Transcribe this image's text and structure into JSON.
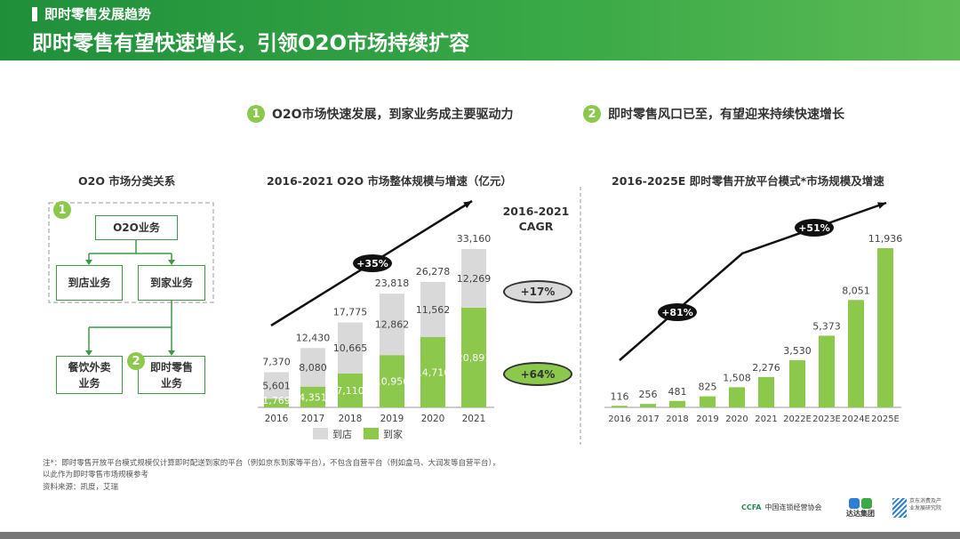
{
  "header": {
    "section": "即时零售发展趋势",
    "title": "即时零售有望快速增长，引领O2O市场持续扩容"
  },
  "points": [
    {
      "num": "1",
      "text": "O2O市场快速发展，到家业务成主要驱动力"
    },
    {
      "num": "2",
      "text": "即时零售风口已至，有望迎来持续快速增长"
    }
  ],
  "diagram": {
    "title": "O2O 市场分类关系",
    "root": "O2O业务",
    "store": "到店业务",
    "home": "到家业务",
    "food": "餐饮外卖\n业务",
    "retail": "即时零售\n业务",
    "badge1": "1",
    "badge2": "2"
  },
  "chart_data": [
    {
      "type": "bar",
      "stacked": true,
      "title": "2016-2021 O2O 市场整体规模与增速（亿元）",
      "categories": [
        "2016",
        "2017",
        "2018",
        "2019",
        "2020",
        "2021"
      ],
      "series": [
        {
          "name": "到家",
          "values": [
            1769,
            4351,
            7110,
            10956,
            14716,
            20891
          ],
          "color": "#8cc84b"
        },
        {
          "name": "到店",
          "values": [
            5601,
            8080,
            10665,
            12862,
            11562,
            12269
          ],
          "color": "#d9d9d9"
        }
      ],
      "totals": [
        7370,
        12430,
        17775,
        23818,
        26278,
        33160
      ],
      "totals_labels": [
        "7,370",
        "12,430",
        "17,775",
        "23,818",
        "26,278",
        "33,160"
      ],
      "home_labels": [
        "1,769",
        "4,351",
        "7,110",
        "10,956",
        "14,716",
        "20,891"
      ],
      "store_labels": [
        "5,601",
        "8,080",
        "10,665",
        "12,862",
        "11,562",
        "12,269"
      ],
      "growth_badge": "+35%",
      "cagr_title": "2016-2021\nCAGR",
      "cagr_store": "+17%",
      "cagr_home": "+64%",
      "legend": "bottom"
    },
    {
      "type": "bar",
      "title": "2016-2025E 即时零售开放平台模式*市场规模及增速",
      "categories": [
        "2016",
        "2017",
        "2018",
        "2019",
        "2020",
        "2021",
        "2022E",
        "2023E",
        "2024E",
        "2025E"
      ],
      "values": [
        116,
        256,
        481,
        825,
        1508,
        2276,
        3530,
        5373,
        8051,
        11936
      ],
      "labels": [
        "116",
        "256",
        "481",
        "825",
        "1,508",
        "2,276",
        "3,530",
        "5,373",
        "8,051",
        "11,936"
      ],
      "color": "#8cc84b",
      "growth_badges": [
        "+81%",
        "+51%"
      ]
    }
  ],
  "footer": {
    "note": "注*：即时零售开放平台模式规模仅计算即时配送到家的平台（例如京东到家等平台），不包含自营平台（例如盒马、大润发等自营平台），以此作为即时零售市场规模参考",
    "source": "资料来源：凯度，艾瑞",
    "logos": {
      "ccfa": "中国连锁经营协会",
      "ccfa_abbr": "CCFA",
      "dada": "达达集团",
      "jd": "京东消费及产业发展研究院"
    }
  }
}
